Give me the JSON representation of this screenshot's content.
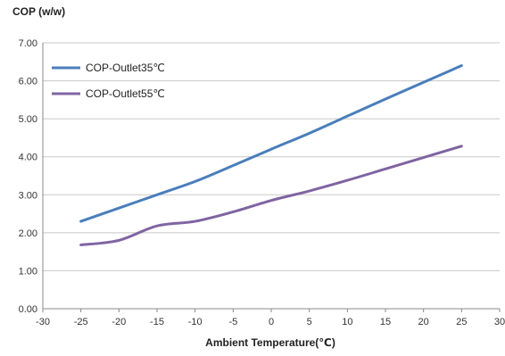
{
  "chart_data": {
    "type": "line",
    "title": "",
    "ylabel": "COP (w/w)",
    "xlabel": "Ambient Temperature(℃)",
    "xlim": [
      -30,
      30
    ],
    "ylim": [
      0,
      7
    ],
    "x_ticks": [
      "-30",
      "-25",
      "-20",
      "-15",
      "-10",
      "-5",
      "0",
      "5",
      "10",
      "15",
      "20",
      "25",
      "30"
    ],
    "y_ticks": [
      "0.00",
      "1.00",
      "2.00",
      "3.00",
      "4.00",
      "5.00",
      "6.00",
      "7.00"
    ],
    "grid": "horizontal",
    "legend": "top-left",
    "x": [
      -25,
      -20,
      -15,
      -10,
      -5,
      0,
      5,
      10,
      15,
      20,
      25
    ],
    "series": [
      {
        "name": "COP-Outlet35℃",
        "color": "#4a7ebb",
        "values": [
          2.3,
          2.65,
          3.0,
          3.35,
          3.77,
          4.2,
          4.62,
          5.07,
          5.52,
          5.96,
          6.4
        ]
      },
      {
        "name": "COP-Outlet55℃",
        "color": "#8064a2",
        "values": [
          1.68,
          1.8,
          2.18,
          2.3,
          2.55,
          2.85,
          3.1,
          3.38,
          3.68,
          3.98,
          4.28
        ]
      }
    ]
  }
}
